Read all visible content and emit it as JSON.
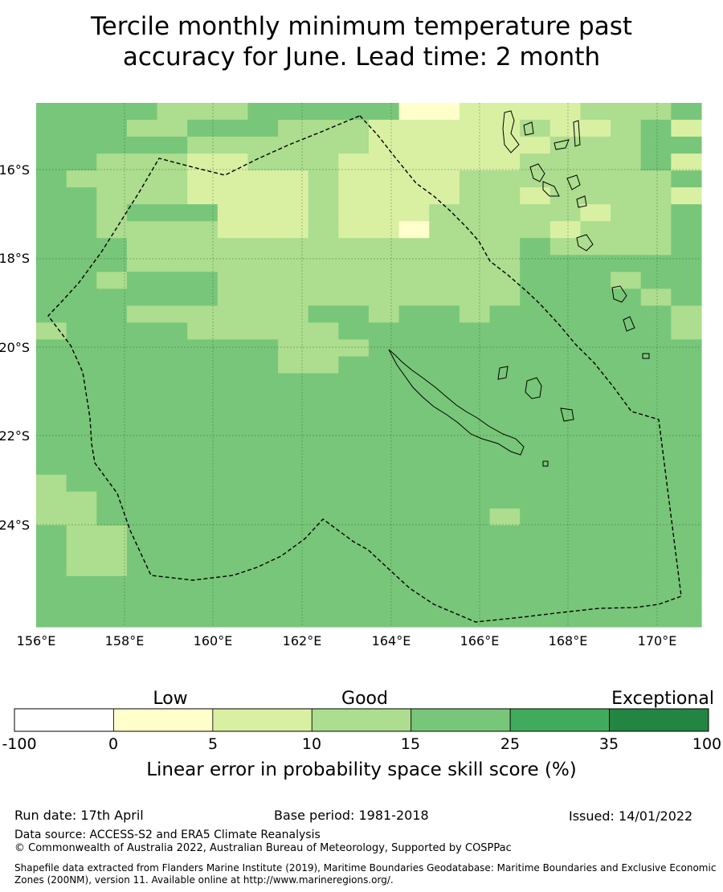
{
  "title_line1": "Tercile monthly minimum temperature past",
  "title_line2": "accuracy for June. Lead time: 2 month",
  "map": {
    "lon_range": [
      156,
      171
    ],
    "lat_range": [
      -26.5,
      -14.6
    ],
    "lon_ticks": [
      "156°E",
      "158°E",
      "160°E",
      "162°E",
      "164°E",
      "166°E",
      "168°E",
      "170°E"
    ],
    "lat_ticks": [
      "16°S",
      "18°S",
      "20°S",
      "22°S",
      "24°S"
    ],
    "grid": true
  },
  "legend": {
    "categories": [
      "Low",
      "Good",
      "Exceptional"
    ],
    "tick_labels": [
      "-100",
      "0",
      "5",
      "10",
      "15",
      "25",
      "35",
      "100"
    ],
    "colors": [
      "#ffffff",
      "#ffffcc",
      "#d9f0a3",
      "#addd8e",
      "#78c679",
      "#41ab5d",
      "#238443"
    ],
    "label": "Linear error in probability space skill score (%)"
  },
  "footer": {
    "run_date": "Run date: 17th April",
    "base_period": "Base period: 1981-2018",
    "issued": "Issued: 14/01/2022",
    "data_source": "Data source: ACCESS-S2 and ERA5 Climate Reanalysis",
    "copyright": "© Commonwealth of Australia 2022, Australian Bureau of Meteorology, Supported by COSPPac",
    "shapefile_line1": "Shapefile data extracted from Flanders Marine Institute (2019), Maritime Boundaries Geodatabase: Maritime Boundaries and Exclusive Economic",
    "shapefile_line2": "Zones (200NM), version 11. Available online at http://www.marineregions.org/."
  }
}
